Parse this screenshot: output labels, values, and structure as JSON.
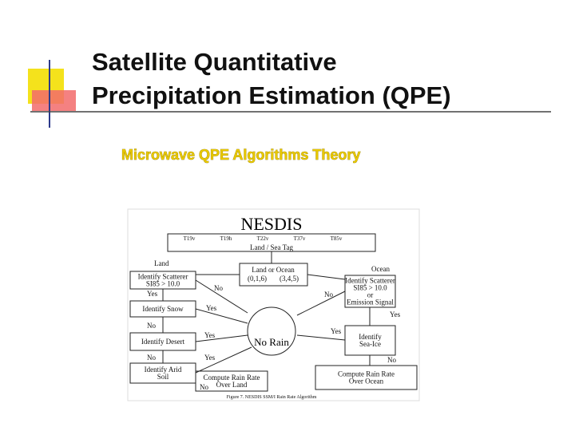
{
  "slide": {
    "title_lines": [
      "Satellite Quantitative",
      "Precipitation Estimation (QPE)"
    ],
    "subtitle": "Microwave QPE Algorithms Theory"
  },
  "diagram": {
    "heading": "NESDIS",
    "channels": [
      "T19v",
      "T19h",
      "T22v",
      "T37v",
      "T85v"
    ],
    "tag": "Land / Sea Tag",
    "land": "Land",
    "ocean": "Ocean",
    "decision": {
      "label": "Land or Ocean",
      "land_codes": "(0,1,6)",
      "ocean_codes": "(3,4,5)"
    },
    "land_steps": [
      [
        "Identify Scatterer",
        "SI85 > 10.0"
      ],
      [
        "Identify Snow"
      ],
      [
        "Identify Desert"
      ],
      [
        "Identify Arid",
        "Soil"
      ]
    ],
    "ocean_steps": [
      [
        "Identify Scatterer",
        "SI85 > 10.0",
        "or",
        "Emission Signal"
      ],
      [
        "Identify",
        "Sea-Ice"
      ]
    ],
    "center": "No Rain",
    "land_output": [
      "Compute Rain Rate",
      "Over Land"
    ],
    "ocean_output": [
      "Compute Rain Rate",
      "Over Ocean"
    ],
    "yes": "Yes",
    "no": "No",
    "caption": "Figure 7. NESDIS SSM/I Rain Rate Algorithm"
  }
}
